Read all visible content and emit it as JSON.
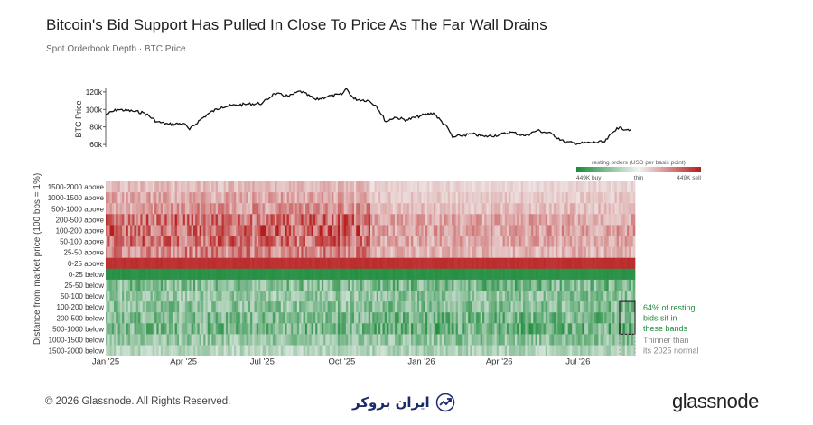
{
  "header": {
    "title": "Bitcoin's Bid Support Has Pulled In Close To Price As The Far Wall Drains",
    "subtitle": "Spot Orderbook Depth · BTC Price"
  },
  "footer": {
    "copyright": "© 2026 Glassnode. All Rights Reserved.",
    "brand": "glassnode",
    "watermark_text": "ایران بروکر"
  },
  "colors": {
    "sell": "#b71c1c",
    "thin": "#f2f2f2",
    "buy": "#1b8a3a",
    "annotation": "#1e8c3c",
    "price_line": "#111111"
  },
  "chart_data": [
    {
      "type": "line",
      "ylabel": "BTC Price",
      "yticks": [
        "60k",
        "80k",
        "100k",
        "120k"
      ],
      "ytick_values": [
        60000,
        80000,
        100000,
        120000
      ],
      "ylim": [
        57000,
        124000
      ],
      "xlim": [
        "2025-01-01",
        "2026-09-05"
      ],
      "x": [
        "2025-01-01",
        "2025-01-15",
        "2025-02-01",
        "2025-02-15",
        "2025-03-01",
        "2025-03-15",
        "2025-04-01",
        "2025-04-08",
        "2025-04-20",
        "2025-05-01",
        "2025-05-15",
        "2025-06-01",
        "2025-06-15",
        "2025-07-01",
        "2025-07-15",
        "2025-08-01",
        "2025-08-14",
        "2025-09-01",
        "2025-09-15",
        "2025-10-01",
        "2025-10-06",
        "2025-10-15",
        "2025-11-01",
        "2025-11-10",
        "2025-11-21",
        "2025-12-01",
        "2025-12-15",
        "2026-01-01",
        "2026-01-15",
        "2026-02-01",
        "2026-02-06",
        "2026-02-15",
        "2026-03-01",
        "2026-03-15",
        "2026-04-01",
        "2026-04-15",
        "2026-05-01",
        "2026-05-15",
        "2026-06-01",
        "2026-06-15",
        "2026-07-01",
        "2026-07-15",
        "2026-08-01",
        "2026-08-15",
        "2026-08-31"
      ],
      "y": [
        94000,
        100000,
        98000,
        96000,
        86000,
        83000,
        84000,
        77000,
        88000,
        96000,
        103000,
        105000,
        106000,
        107000,
        118000,
        115000,
        121000,
        111000,
        115000,
        117000,
        124000,
        112000,
        110000,
        104000,
        86000,
        91000,
        88000,
        93000,
        96000,
        78000,
        68000,
        70000,
        72000,
        69000,
        71000,
        74000,
        70000,
        76000,
        72000,
        63000,
        61000,
        62000,
        63000,
        79000,
        77000
      ]
    },
    {
      "type": "heatmap",
      "ylabel": "Distance from market price (100 bps = 1%)",
      "rows": [
        "1500-2000 above",
        "1000-1500 above",
        "500-1000 above",
        "200-500 above",
        "100-200 above",
        "50-100 above",
        "25-50 above",
        "0-25 above",
        "0-25 below",
        "25-50 below",
        "50-100 below",
        "100-200 below",
        "200-500 below",
        "500-1000 below",
        "1000-1500 below",
        "1500-2000 below"
      ],
      "xticks": [
        "Jan '25",
        "Apr '25",
        "Jul '25",
        "Oct '25",
        "Jan '26",
        "Apr '26",
        "Jul '26"
      ],
      "xtick_dates": [
        "2025-01-01",
        "2025-04-01",
        "2025-07-01",
        "2025-10-01",
        "2026-01-01",
        "2026-04-01",
        "2026-07-01"
      ],
      "xlim": [
        "2025-01-01",
        "2026-09-05"
      ],
      "colorbar": {
        "title": "resting orders (USD per basis point)",
        "labels": [
          "449K buy",
          "thin",
          "449K sell"
        ],
        "range": [
          -449000,
          449000
        ]
      },
      "row_mean_intensity": [
        -0.22,
        -0.3,
        -0.38,
        -0.55,
        -0.6,
        -0.55,
        -0.45,
        -0.93,
        0.95,
        0.55,
        0.45,
        0.5,
        0.55,
        0.6,
        0.45,
        0.3
      ],
      "annotations": [
        {
          "text_lines": [
            "64% of resting",
            "bids sit in",
            "these bands"
          ],
          "rows": [
            "100-200 below",
            "200-500 below",
            "500-1000 below"
          ],
          "style": "solid box"
        },
        {
          "text_lines": [
            "Thinner than",
            "its 2025 normal"
          ],
          "rows": [
            "1000-1500 below",
            "1500-2000 below"
          ],
          "style": "dashed box"
        }
      ]
    }
  ]
}
